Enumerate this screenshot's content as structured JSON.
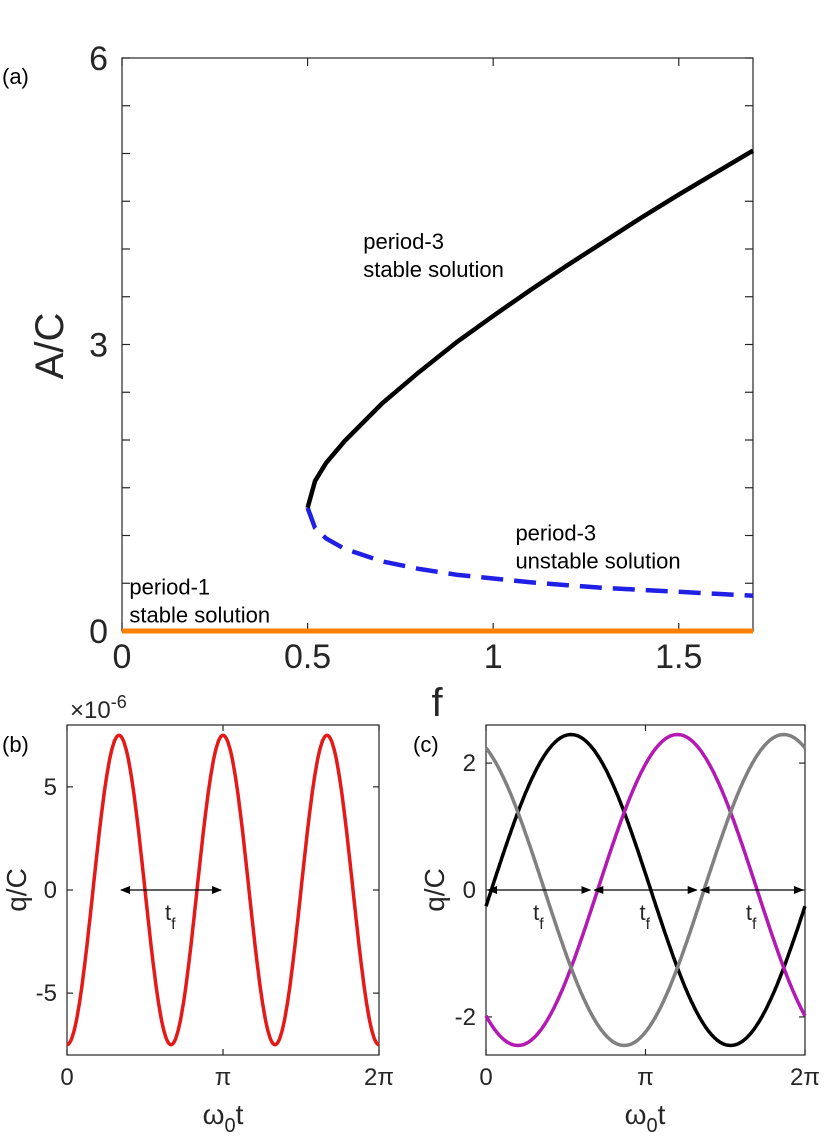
{
  "chart_data": [
    {
      "type": "line",
      "panel_label": "(a)",
      "xlabel": "f",
      "ylabel": "A/C",
      "xlim": [
        0,
        1.7
      ],
      "ylim": [
        0,
        6
      ],
      "xticks": [
        "0",
        "0.5",
        "1",
        "1.5"
      ],
      "yticks": [
        "0",
        "3",
        "6"
      ],
      "grid": false,
      "series": [
        {
          "name": "period-3 stable solution",
          "color": "#000000",
          "style": "solid",
          "x": [
            0.5,
            0.52,
            0.55,
            0.6,
            0.7,
            0.8,
            0.9,
            1.0,
            1.1,
            1.2,
            1.3,
            1.4,
            1.5,
            1.6,
            1.7
          ],
          "y": [
            1.29,
            1.57,
            1.76,
            1.99,
            2.38,
            2.71,
            3.02,
            3.3,
            3.57,
            3.83,
            4.08,
            4.33,
            4.57,
            4.8,
            5.03
          ]
        },
        {
          "name": "period-3 unstable solution",
          "color": "#1f1fe6",
          "style": "dashed",
          "x": [
            0.5,
            0.52,
            0.55,
            0.6,
            0.7,
            0.8,
            0.9,
            1.0,
            1.1,
            1.2,
            1.3,
            1.4,
            1.5,
            1.6,
            1.7
          ],
          "y": [
            1.29,
            1.08,
            0.97,
            0.86,
            0.73,
            0.65,
            0.59,
            0.55,
            0.51,
            0.48,
            0.45,
            0.43,
            0.41,
            0.39,
            0.37
          ]
        },
        {
          "name": "period-1 stable solution",
          "color": "#ff8000",
          "style": "solid",
          "x": [
            0,
            1.7
          ],
          "y": [
            0,
            0
          ]
        }
      ],
      "annotations": [
        {
          "lines": [
            "period-3",
            "stable solution"
          ],
          "x": 0.65,
          "y": 4.0
        },
        {
          "lines": [
            "period-3",
            "unstable solution"
          ],
          "x": 1.06,
          "y": 0.95
        },
        {
          "lines": [
            "period-1",
            "stable solution"
          ],
          "x": 0.02,
          "y": 0.38
        }
      ]
    },
    {
      "type": "line",
      "panel_label": "(b)",
      "xlabel_main": "ω",
      "xlabel_sub": "0",
      "xlabel_tail": "t",
      "ylabel": "q/C",
      "y_exponent_prefix": "×10",
      "y_exponent": "-6",
      "xlim": [
        0,
        6.2832
      ],
      "ylim": [
        -8,
        8
      ],
      "xticks": [
        {
          "value": 0,
          "label": "0"
        },
        {
          "value": 3.1416,
          "label": "π"
        },
        {
          "value": 6.2832,
          "label": "2π"
        }
      ],
      "yticks": [
        {
          "value": 5,
          "label": "5"
        },
        {
          "value": 0,
          "label": "0"
        },
        {
          "value": -5,
          "label": "-5"
        }
      ],
      "series": [
        {
          "name": "",
          "color": "#e61919",
          "amplitude": 7.5,
          "cycles": 3,
          "phase": 0,
          "cosine_negative": true
        }
      ],
      "markers": [
        {
          "label": "t",
          "sub": "f",
          "x_start": 1.047,
          "x_end": 3.142,
          "y": 0
        }
      ]
    },
    {
      "type": "line",
      "panel_label": "(c)",
      "xlabel_main": "ω",
      "xlabel_sub": "0",
      "xlabel_tail": "t",
      "ylabel": "q/C",
      "xlim": [
        0,
        6.2832
      ],
      "ylim": [
        -2.6,
        2.6
      ],
      "xticks": [
        {
          "value": 0,
          "label": "0"
        },
        {
          "value": 3.1416,
          "label": "π"
        },
        {
          "value": 6.2832,
          "label": "2π"
        }
      ],
      "yticks": [
        {
          "value": 2,
          "label": "2"
        },
        {
          "value": 0,
          "label": "0"
        },
        {
          "value": -2,
          "label": "-2"
        }
      ],
      "series": [
        {
          "name": "",
          "color": "#000000",
          "amplitude": 2.45,
          "phase_deg": -96
        },
        {
          "name": "",
          "color": "#b319b3",
          "amplitude": 2.45,
          "phase_deg": 144
        },
        {
          "name": "",
          "color": "#808080",
          "amplitude": 2.45,
          "phase_deg": 24
        }
      ],
      "markers": [
        {
          "label": "t",
          "sub": "f",
          "x_start": 0.0,
          "x_end": 2.094,
          "y": 0
        },
        {
          "label": "t",
          "sub": "f",
          "x_start": 2.094,
          "x_end": 4.189,
          "y": 0
        },
        {
          "label": "t",
          "sub": "f",
          "x_start": 4.189,
          "x_end": 6.283,
          "y": 0
        }
      ]
    }
  ]
}
